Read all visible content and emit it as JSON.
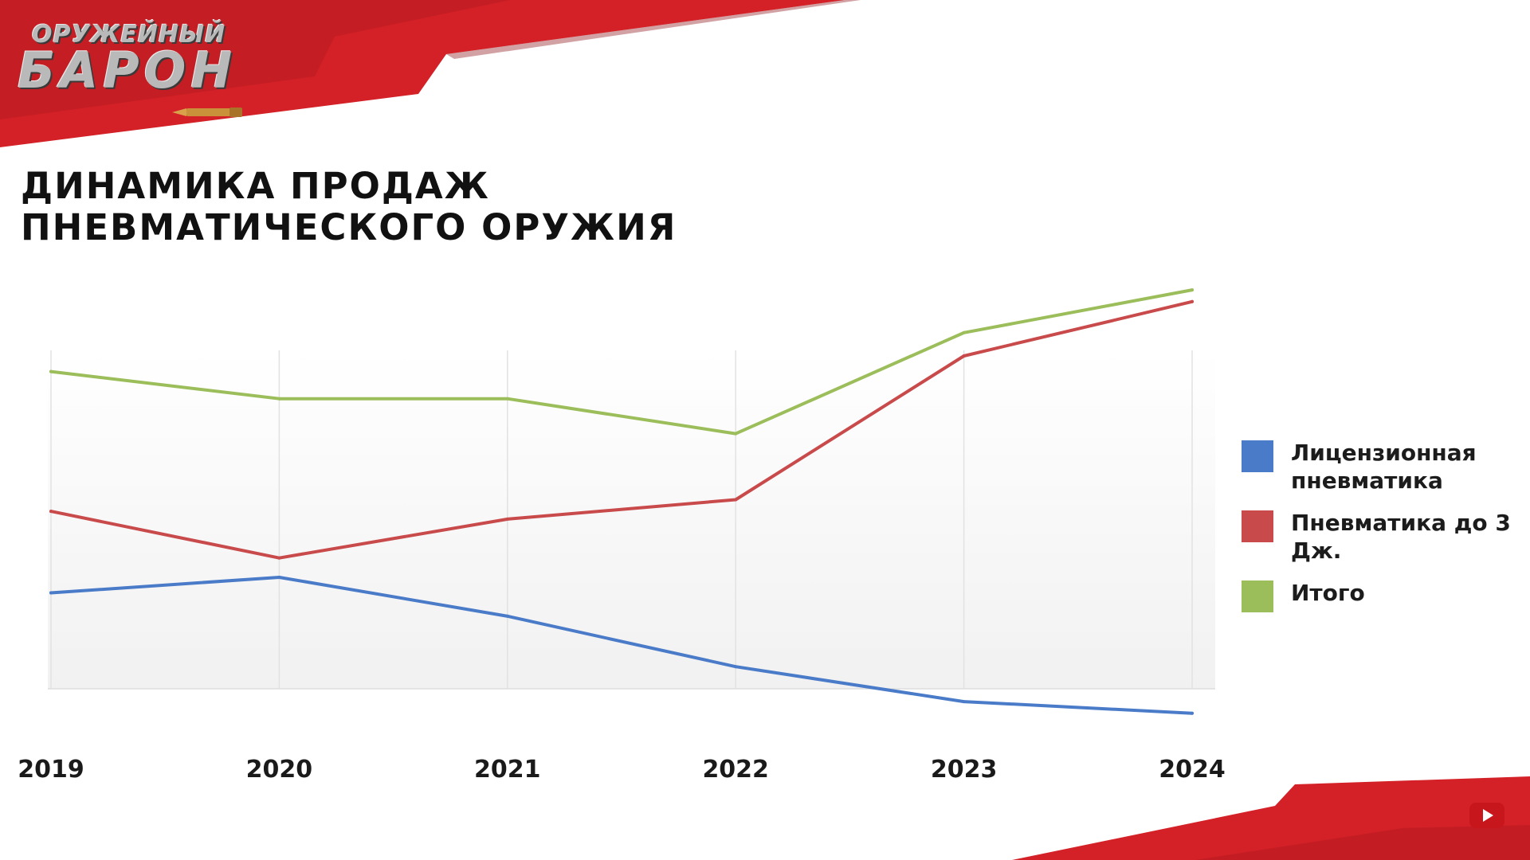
{
  "logo": {
    "line1": "ОРУЖЕЙНЫЙ",
    "line2": "БАРОН"
  },
  "title": {
    "line1": "ДИНАМИКА ПРОДАЖ",
    "line2": "ПНЕВМАТИЧЕСКОГО ОРУЖИЯ"
  },
  "colors": {
    "brand_red": "#d42127",
    "licensed": "#4a7bc8",
    "under3j": "#c94a4b",
    "total": "#9bbd5a"
  },
  "legend": {
    "items": [
      {
        "label": "Лицензионная пневматика",
        "color": "#4a7bc8"
      },
      {
        "label": "Пневматика до 3 Дж.",
        "color": "#c94a4b"
      },
      {
        "label": "Итого",
        "color": "#9bbd5a"
      }
    ]
  },
  "chart_data": {
    "type": "line",
    "title": "ДИНАМИКА ПРОДАЖ ПНЕВМАТИЧЕСКОГО ОРУЖИЯ",
    "categories": [
      "2019",
      "2020",
      "2021",
      "2022",
      "2023",
      "2024"
    ],
    "ylim": [
      0,
      100
    ],
    "grid": "vertical",
    "legend_position": "right",
    "y_axis_labels_shown": false,
    "series": [
      {
        "name": "Лицензионная пневматика",
        "color": "#4a7bc8",
        "values": [
          33,
          37,
          27,
          14,
          5,
          2
        ]
      },
      {
        "name": "Пневматика до 3 Дж.",
        "color": "#c94a4b",
        "values": [
          54,
          42,
          52,
          57,
          94,
          108
        ]
      },
      {
        "name": "Итого",
        "color": "#9bbd5a",
        "values": [
          90,
          83,
          83,
          74,
          100,
          111
        ]
      }
    ]
  },
  "icons": {
    "youtube": "youtube-play-icon"
  }
}
